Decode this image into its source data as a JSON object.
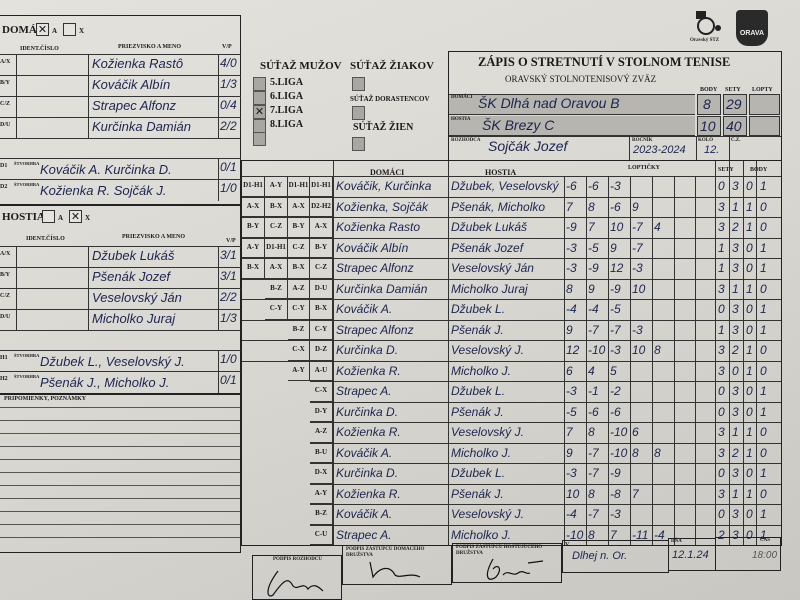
{
  "logos": {
    "stz_caption": "Oravský STZ",
    "orava_badge": "ORAVA"
  },
  "home_team": {
    "label": "DOMÁCI",
    "option_a": "A",
    "option_x": "X",
    "selected": "A",
    "col_ident": "IDENT.ČÍSLO",
    "col_name": "PRIEZVISKO A MENO",
    "col_vp": "V/P",
    "players": [
      {
        "code": "A/X",
        "name": "Kožienka Rastô",
        "vp": "4/0"
      },
      {
        "code": "B/Y",
        "name": "Kováčik Albín",
        "vp": "1/3"
      },
      {
        "code": "C/Z",
        "name": "Strapec Alfonz",
        "vp": "0/4"
      },
      {
        "code": "D/U",
        "name": "Kurčinka Damián",
        "vp": "2/2"
      }
    ],
    "doubles": [
      {
        "code": "D1",
        "label": "ŠTVORHRA",
        "names": "Kováčik A. Kurčinka D.",
        "vp": "0/1"
      },
      {
        "code": "D2",
        "label": "ŠTVORHRA",
        "names": "Kožienka R. Sojčák J.",
        "vp": "1/0"
      }
    ]
  },
  "away_team": {
    "label": "HOSTIA",
    "option_a": "A",
    "option_x": "X",
    "selected": "X",
    "col_ident": "IDENT.ČÍSLO",
    "col_name": "PRIEZVISKO A MENO",
    "col_vp": "V/P",
    "players": [
      {
        "code": "A/X",
        "name": "Džubek Lukáš",
        "vp": "3/1"
      },
      {
        "code": "B/Y",
        "name": "Pšenák Jozef",
        "vp": "3/1"
      },
      {
        "code": "C/Z",
        "name": "Veselovský Ján",
        "vp": "2/2"
      },
      {
        "code": "D/U",
        "name": "Micholko Juraj",
        "vp": "1/3"
      }
    ],
    "doubles": [
      {
        "code": "H1",
        "label": "ŠTVORHRA",
        "names": "Džubek L., Veselovský J.",
        "vp": "1/0"
      },
      {
        "code": "H2",
        "label": "ŠTVORHRA",
        "names": "Pšenák J., Micholko J.",
        "vp": "0/1"
      }
    ]
  },
  "notes_label": "PRIPOMIENKY, POZNÁMKY",
  "competition": {
    "men_title": "SÚŤAŽ MUŽOV",
    "leagues": [
      {
        "label": "5.LIGA",
        "checked": false
      },
      {
        "label": "6.LIGA",
        "checked": false
      },
      {
        "label": "7.LIGA",
        "checked": true
      },
      {
        "label": "8.LIGA",
        "checked": false
      }
    ],
    "pupils_title": "SÚŤAŽ ŽIAKOV",
    "juniors_title": "SÚŤAŽ DORASTENCOV",
    "women_title": "SÚŤAŽ ŽIEN"
  },
  "header": {
    "title": "ZÁPIS O STRETNUTÍ V STOLNOM TENISE",
    "subtitle": "ORAVSKÝ STOLNOTENISOVÝ ZVÄZ",
    "col_body": "BODY",
    "col_sety": "SETY",
    "col_lopty": "LOPTY",
    "home_label": "DOMÁCI",
    "home_team": "ŠK Dlhá nad Oravou B",
    "home_body": "8",
    "home_sety": "29",
    "away_label": "HOSTIA",
    "away_team": "ŠK Brezy C",
    "away_body": "10",
    "away_sety": "40",
    "referee_label": "ROZHODCA",
    "referee": "Sojčák Jozef",
    "season_label": "ROČNÍK",
    "season": "2023-2024",
    "round_label": "KOLO",
    "round": "12.",
    "number_label": "Č.Z."
  },
  "matches_header": {
    "domaci": "DOMÁCI",
    "hostia": "HOSTIA",
    "lopticky": "LOPTIČKY",
    "sety": "SETY",
    "body": "BODY"
  },
  "matches": [
    {
      "codes": [
        "D1-H1",
        "A-Y",
        "D1-H1",
        "D1-H1"
      ],
      "home": "Kováčik, Kurčinka",
      "away": "Džubek, Veselovský",
      "balls": [
        "-6",
        "-6",
        "-3"
      ],
      "sets": [
        "0",
        "3"
      ],
      "points": [
        "0",
        "1"
      ]
    },
    {
      "codes": [
        "A-X",
        "B-X",
        "A-X",
        "D2-H2"
      ],
      "home": "Kožienka, Sojčák",
      "away": "Pšenák, Micholko",
      "balls": [
        "7",
        "8",
        "-6",
        "9"
      ],
      "sets": [
        "3",
        "1"
      ],
      "points": [
        "1",
        "0"
      ]
    },
    {
      "codes": [
        "B-Y",
        "C-Z",
        "B-Y",
        "A-X"
      ],
      "home": "Kožienka Rasto",
      "away": "Džubek Lukáš",
      "balls": [
        "-9",
        "7",
        "10",
        "-7",
        "4"
      ],
      "sets": [
        "3",
        "2"
      ],
      "points": [
        "1",
        "0"
      ]
    },
    {
      "codes": [
        "A-Y",
        "D1-H1",
        "C-Z",
        "B-Y"
      ],
      "home": "Kováčik Albín",
      "away": "Pšenák Jozef",
      "balls": [
        "-3",
        "-5",
        "9",
        "-7"
      ],
      "sets": [
        "1",
        "3"
      ],
      "points": [
        "0",
        "1"
      ]
    },
    {
      "codes": [
        "B-X",
        "A-X",
        "B-X",
        "C-Z"
      ],
      "home": "Strapec Alfonz",
      "away": "Veselovský Ján",
      "balls": [
        "-3",
        "-9",
        "12",
        "-3"
      ],
      "sets": [
        "1",
        "3"
      ],
      "points": [
        "0",
        "1"
      ]
    },
    {
      "codes": [
        "",
        "B-Z",
        "A-Z",
        "D-U"
      ],
      "home": "Kurčinka Damián",
      "away": "Micholko Juraj",
      "balls": [
        "8",
        "9",
        "-9",
        "10"
      ],
      "sets": [
        "3",
        "1"
      ],
      "points": [
        "1",
        "0"
      ]
    },
    {
      "codes": [
        "",
        "C-Y",
        "C-Y",
        "B-X"
      ],
      "home": "Kováčik A.",
      "away": "Džubek L.",
      "balls": [
        "-4",
        "-4",
        "-5"
      ],
      "sets": [
        "0",
        "3"
      ],
      "points": [
        "0",
        "1"
      ]
    },
    {
      "codes": [
        "",
        "",
        "B-Z",
        "C-Y"
      ],
      "home": "Strapec Alfonz",
      "away": "Pšenák J.",
      "balls": [
        "9",
        "-7",
        "-7",
        "-3"
      ],
      "sets": [
        "1",
        "3"
      ],
      "points": [
        "0",
        "1"
      ]
    },
    {
      "codes": [
        "",
        "",
        "C-X",
        "D-Z"
      ],
      "home": "Kurčinka D.",
      "away": "Veselovský J.",
      "balls": [
        "12",
        "-10",
        "-3",
        "10",
        "8"
      ],
      "sets": [
        "3",
        "2"
      ],
      "points": [
        "1",
        "0"
      ]
    },
    {
      "codes": [
        "",
        "",
        "A-Y",
        "A-U"
      ],
      "home": "Kožienka R.",
      "away": "Micholko J.",
      "balls": [
        "6",
        "4",
        "5"
      ],
      "sets": [
        "3",
        "0"
      ],
      "points": [
        "1",
        "0"
      ]
    },
    {
      "codes": [
        "",
        "",
        "",
        "C-X"
      ],
      "home": "Strapec A.",
      "away": "Džubek L.",
      "balls": [
        "-3",
        "-1",
        "-2"
      ],
      "sets": [
        "0",
        "3"
      ],
      "points": [
        "0",
        "1"
      ]
    },
    {
      "codes": [
        "",
        "",
        "",
        "D-Y"
      ],
      "home": "Kurčinka D.",
      "away": "Pšenák J.",
      "balls": [
        "-5",
        "-6",
        "-6"
      ],
      "sets": [
        "0",
        "3"
      ],
      "points": [
        "0",
        "1"
      ]
    },
    {
      "codes": [
        "",
        "",
        "",
        "A-Z"
      ],
      "home": "Kožienka R.",
      "away": "Veselovský J.",
      "balls": [
        "7",
        "8",
        "-10",
        "6"
      ],
      "sets": [
        "3",
        "1"
      ],
      "points": [
        "1",
        "0"
      ]
    },
    {
      "codes": [
        "",
        "",
        "",
        "B-U"
      ],
      "home": "Kováčik A.",
      "away": "Micholko J.",
      "balls": [
        "9",
        "-7",
        "-10",
        "8",
        "8"
      ],
      "sets": [
        "3",
        "2"
      ],
      "points": [
        "1",
        "0"
      ]
    },
    {
      "codes": [
        "",
        "",
        "",
        "D-X"
      ],
      "home": "Kurčinka D.",
      "away": "Džubek L.",
      "balls": [
        "-3",
        "-7",
        "-9"
      ],
      "sets": [
        "0",
        "3"
      ],
      "points": [
        "0",
        "1"
      ]
    },
    {
      "codes": [
        "",
        "",
        "",
        "A-Y"
      ],
      "home": "Kožienka R.",
      "away": "Pšenák J.",
      "balls": [
        "10",
        "8",
        "-8",
        "7"
      ],
      "sets": [
        "3",
        "1"
      ],
      "points": [
        "1",
        "0"
      ]
    },
    {
      "codes": [
        "",
        "",
        "",
        "B-Z"
      ],
      "home": "Kováčik A.",
      "away": "Veselovský J.",
      "balls": [
        "-4",
        "-7",
        "-3"
      ],
      "sets": [
        "0",
        "3"
      ],
      "points": [
        "0",
        "1"
      ]
    },
    {
      "codes": [
        "",
        "",
        "",
        "C-U"
      ],
      "home": "Strapec A.",
      "away": "Micholko J.",
      "balls": [
        "-10",
        "8",
        "7",
        "-11",
        "-4"
      ],
      "sets": [
        "2",
        "3"
      ],
      "points": [
        "0",
        "1"
      ]
    }
  ],
  "footer": {
    "referee_sig_label": "PODPIS ROZHODCU",
    "home_sig_label": "PODPIS ZÁSTUPCU DOMÁCEHO DRUŽSTVA",
    "away_sig_label": "PODPIS ZÁSTUPCU HOSTÚJÚCEHO DRUŽSTVA",
    "place_label": "V",
    "place": "Dlhej n. Or.",
    "date_label": "DŇA",
    "date": "12.1.24",
    "time_label": "ČAS",
    "time": "18:00"
  },
  "colors": {
    "ink": "#1c2550",
    "paper": "#dcdad4",
    "shade": "#b7b5af"
  }
}
